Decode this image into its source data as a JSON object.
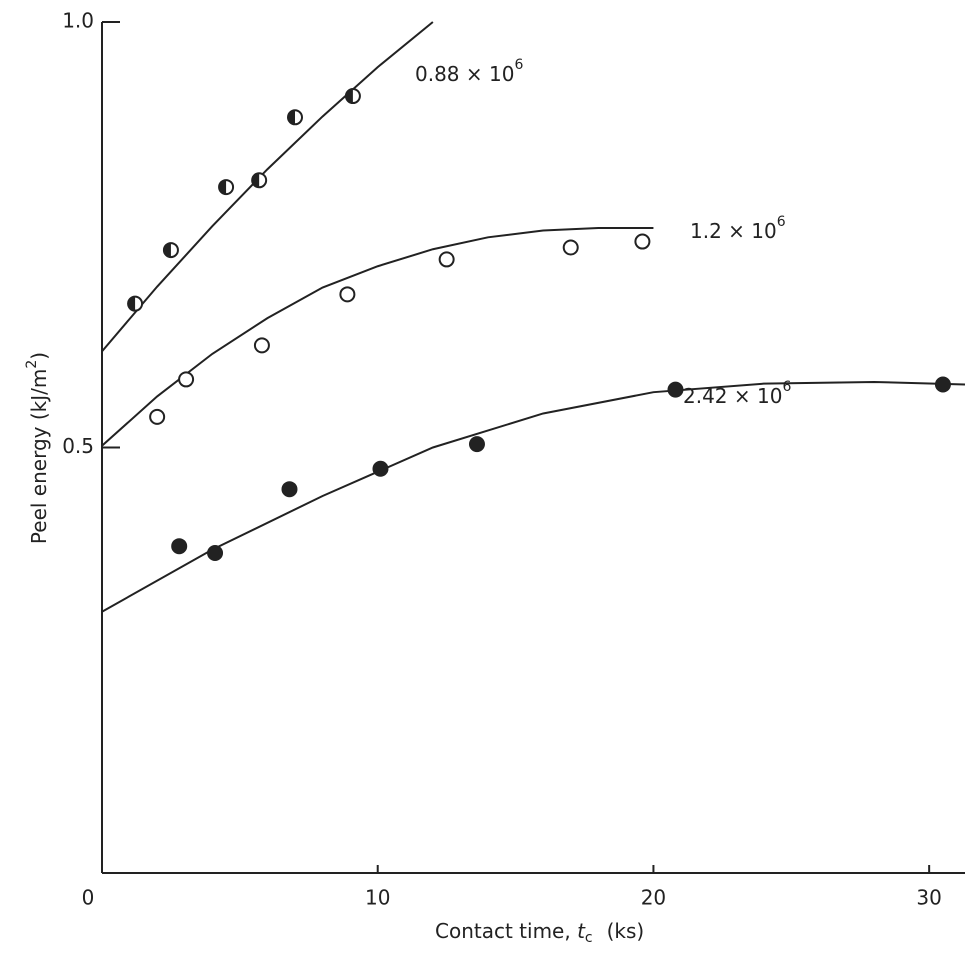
{
  "chart_data": {
    "type": "scatter",
    "x_label": {
      "text": "Contact time, ",
      "var": "t",
      "sub": "c",
      "unit": "(ks)"
    },
    "y_label": {
      "text": "Peel energy (kJ/m",
      "sup": "2",
      "end": ")"
    },
    "xlim": [
      0,
      31.3
    ],
    "ylim": [
      0,
      1
    ],
    "xticks": [
      0,
      10,
      20,
      30
    ],
    "yticks": [
      0.5,
      {
        "value": 1,
        "label": "1.0"
      }
    ],
    "series": [
      {
        "name": "0.88 × 10",
        "power": "6",
        "color": "#222",
        "marker": "half",
        "x": [
          1.2,
          2.5,
          4.5,
          5.7,
          7.0,
          9.1
        ],
        "values": [
          0.669,
          0.732,
          0.806,
          0.814,
          0.888,
          0.913
        ],
        "fit_x": [
          0,
          2,
          4,
          6,
          8,
          10,
          12
        ],
        "fit_y": [
          0.613,
          0.689,
          0.76,
          0.827,
          0.889,
          0.947,
          1.0
        ]
      },
      {
        "name": "1.2 × 10",
        "power": "6",
        "color": "#222",
        "marker": "open",
        "x": [
          2.0,
          3.05,
          5.8,
          8.9,
          12.5,
          17.0,
          19.6
        ],
        "values": [
          0.536,
          0.58,
          0.62,
          0.68,
          0.721,
          0.735,
          0.742
        ],
        "fit_x": [
          0,
          2,
          4,
          6,
          8,
          10,
          12,
          14,
          16,
          18,
          20
        ],
        "fit_y": [
          0.502,
          0.56,
          0.61,
          0.652,
          0.688,
          0.713,
          0.733,
          0.747,
          0.755,
          0.758,
          0.758
        ]
      },
      {
        "name": "2.42 × 10",
        "power": "6",
        "color": "#222",
        "marker": "filled",
        "x": [
          2.8,
          4.1,
          6.8,
          10.1,
          13.6,
          20.8,
          30.5
        ],
        "values": [
          0.384,
          0.376,
          0.451,
          0.475,
          0.504,
          0.568,
          0.574
        ],
        "fit_x": [
          0,
          4,
          8,
          12,
          16,
          20,
          24,
          28,
          31.3
        ],
        "fit_y": [
          0.307,
          0.38,
          0.443,
          0.5,
          0.54,
          0.565,
          0.575,
          0.577,
          0.574
        ]
      }
    ]
  }
}
